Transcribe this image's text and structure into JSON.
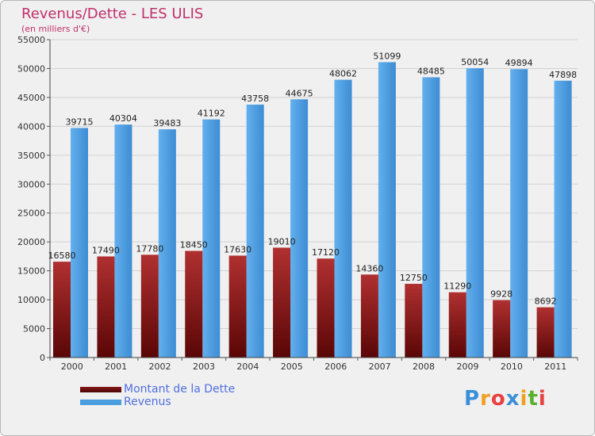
{
  "chart_data": {
    "type": "bar",
    "title": "Revenus/Dette - LES ULIS",
    "subtitle": "(en milliers d'€)",
    "categories": [
      "2000",
      "2001",
      "2002",
      "2003",
      "2004",
      "2005",
      "2006",
      "2007",
      "2008",
      "2009",
      "2010",
      "2011"
    ],
    "series": [
      {
        "name": "Montant de la Dette",
        "color": "#7a1010",
        "values": [
          16580,
          17490,
          17780,
          18450,
          17630,
          19010,
          17120,
          14360,
          12750,
          11290,
          9928,
          8692
        ],
        "labels": [
          "16580",
          "17490",
          "17780",
          "18450",
          "17630",
          "19010",
          "17120",
          "14360",
          "12750",
          "11290",
          "9928",
          "8692"
        ]
      },
      {
        "name": "Revenus",
        "color": "#4a9ee0",
        "values": [
          39715,
          40304,
          39483,
          41192,
          43758,
          44675,
          48062,
          51099,
          48485,
          50054,
          49894,
          47898
        ],
        "labels": [
          "39715",
          "40304",
          "39483",
          "41192",
          "43758",
          "44675",
          "48062",
          "51099",
          "48485",
          "50054",
          "49894",
          "47898"
        ]
      }
    ],
    "ylim": [
      0,
      55000
    ],
    "yticks": [
      0,
      5000,
      10000,
      15000,
      20000,
      25000,
      30000,
      35000,
      40000,
      45000,
      50000,
      55000
    ],
    "ytick_labels": [
      "0",
      "5000",
      "10000",
      "15000",
      "20000",
      "25000",
      "30000",
      "35000",
      "40000",
      "45000",
      "50000",
      "55000"
    ],
    "grid": true,
    "legend_position": "bottom-left"
  },
  "legend": {
    "items": [
      {
        "label": "Montant de la Dette",
        "color": "#6b0a0a"
      },
      {
        "label": "Revenus",
        "color": "#4a9ee0"
      }
    ]
  },
  "logo": {
    "text": "Proxiti",
    "letters": [
      "P",
      "r",
      "o",
      "x",
      "i",
      "t",
      "i"
    ],
    "colors": [
      "#3a8fd8",
      "#f0a020",
      "#e84040",
      "#3a8fd8",
      "#f0a020",
      "#58b030",
      "#e84040"
    ]
  }
}
